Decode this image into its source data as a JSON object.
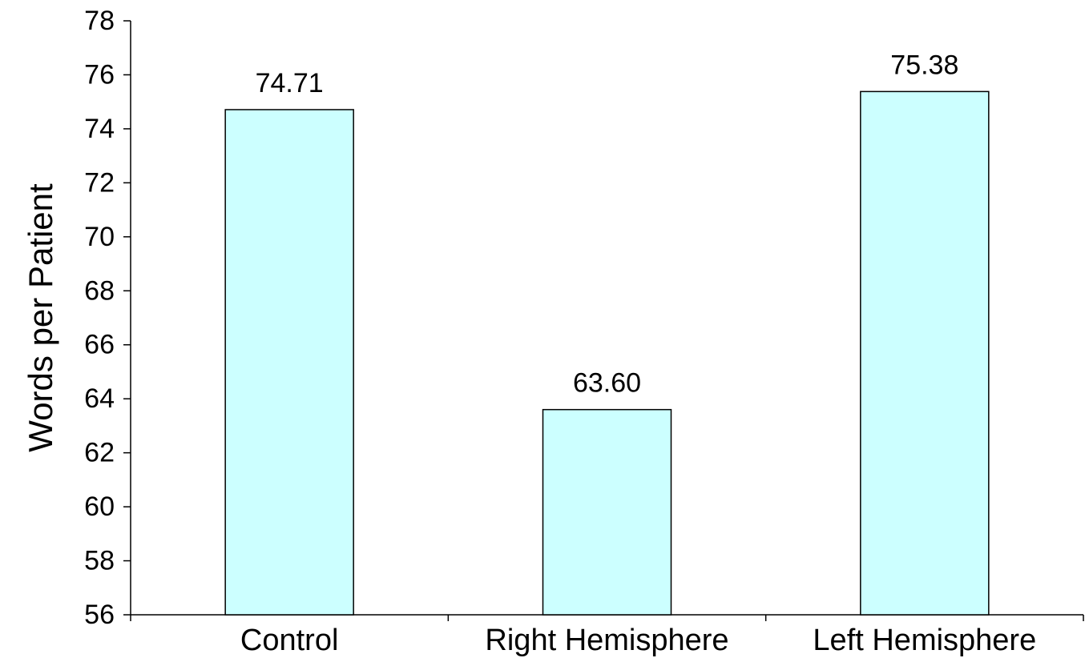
{
  "chart_data": {
    "type": "bar",
    "title": "",
    "xlabel": "",
    "ylabel": "Words per Patient",
    "categories": [
      "Control",
      "Right Hemisphere",
      "Left Hemisphere"
    ],
    "values": [
      74.71,
      63.6,
      75.38
    ],
    "data_labels": [
      "74.71",
      "63.60",
      "75.38"
    ],
    "ylim": [
      56,
      78
    ],
    "y_ticks": [
      56,
      58,
      60,
      62,
      64,
      66,
      68,
      70,
      72,
      74,
      76,
      78
    ],
    "grid": false,
    "legend": "none",
    "bar_color": "#ccffff",
    "bar_edge_color": "#000000"
  }
}
